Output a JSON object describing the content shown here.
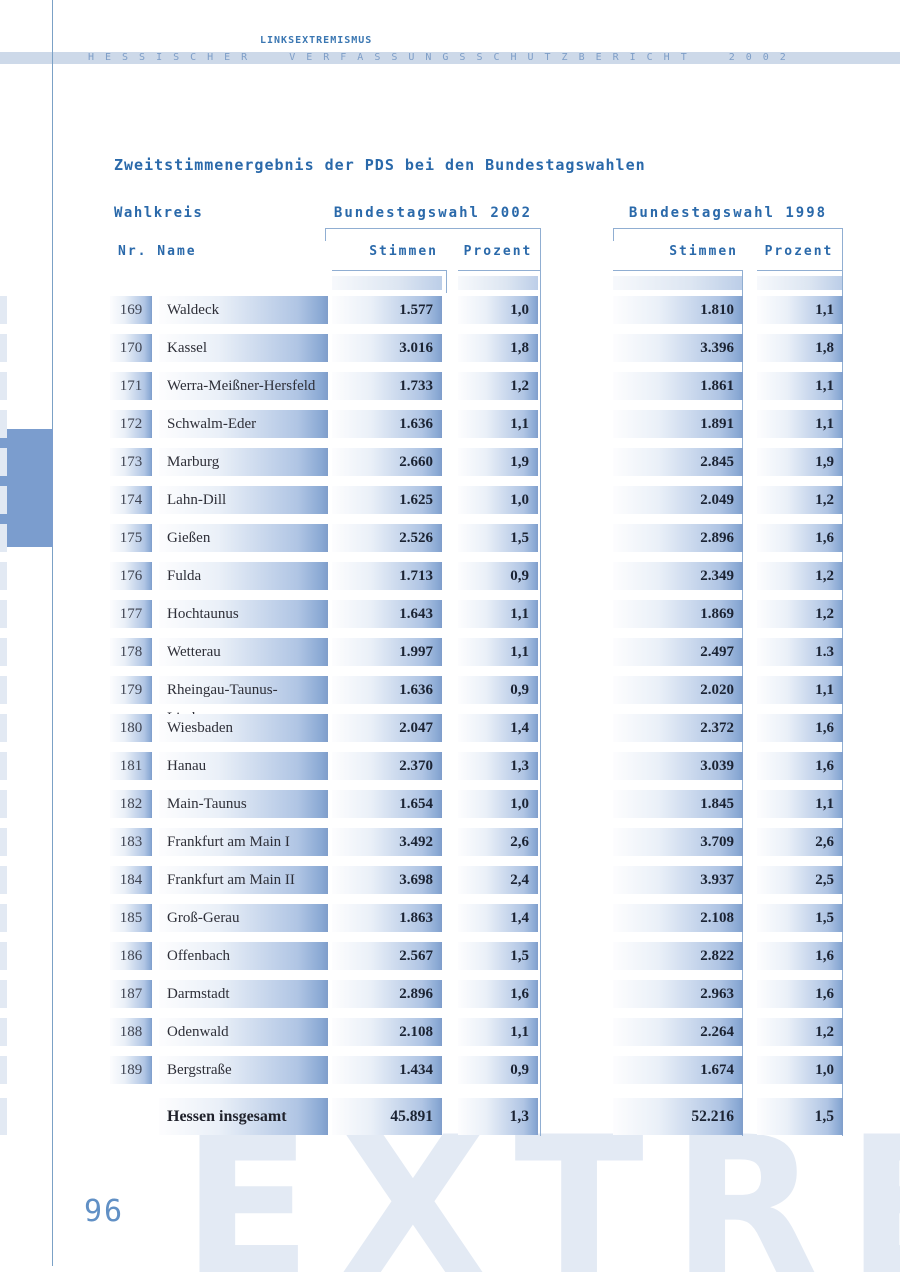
{
  "page": {
    "eyebrow": "LINKSEXTREMISMUS",
    "band_title": "HESSISCHER VERFASSUNGSSCHUTZBERICHT 2002",
    "page_number": "96",
    "watermark": "EXTRE"
  },
  "table": {
    "title": "Zweitstimmenergebnis der PDS bei den Bundestagswahlen",
    "group_headers": {
      "wahlkreis": "Wahlkreis",
      "y2002": "Bundestagswahl 2002",
      "y1998": "Bundestagswahl 1998"
    },
    "col_headers": {
      "nr_name": "Nr. Name",
      "stimmen": "Stimmen",
      "prozent": "Prozent"
    },
    "rows": [
      {
        "nr": "169",
        "name": "Waldeck",
        "s2002": "1.577",
        "p2002": "1,0",
        "s1998": "1.810",
        "p1998": "1,1"
      },
      {
        "nr": "170",
        "name": "Kassel",
        "s2002": "3.016",
        "p2002": "1,8",
        "s1998": "3.396",
        "p1998": "1,8"
      },
      {
        "nr": "171",
        "name": "Werra-Meißner-Hersfeld",
        "s2002": "1.733",
        "p2002": "1,2",
        "s1998": "1.861",
        "p1998": "1,1"
      },
      {
        "nr": "172",
        "name": "Schwalm-Eder",
        "s2002": "1.636",
        "p2002": "1,1",
        "s1998": "1.891",
        "p1998": "1,1"
      },
      {
        "nr": "173",
        "name": "Marburg",
        "s2002": "2.660",
        "p2002": "1,9",
        "s1998": "2.845",
        "p1998": "1,9"
      },
      {
        "nr": "174",
        "name": "Lahn-Dill",
        "s2002": "1.625",
        "p2002": "1,0",
        "s1998": "2.049",
        "p1998": "1,2"
      },
      {
        "nr": "175",
        "name": "Gießen",
        "s2002": "2.526",
        "p2002": "1,5",
        "s1998": "2.896",
        "p1998": "1,6"
      },
      {
        "nr": "176",
        "name": "Fulda",
        "s2002": "1.713",
        "p2002": "0,9",
        "s1998": "2.349",
        "p1998": "1,2"
      },
      {
        "nr": "177",
        "name": "Hochtaunus",
        "s2002": "1.643",
        "p2002": "1,1",
        "s1998": "1.869",
        "p1998": "1,2"
      },
      {
        "nr": "178",
        "name": "Wetterau",
        "s2002": "1.997",
        "p2002": "1,1",
        "s1998": "2.497",
        "p1998": "1.3"
      },
      {
        "nr": "179",
        "name": "Rheingau-Taunus-Limburg",
        "s2002": "1.636",
        "p2002": "0,9",
        "s1998": "2.020",
        "p1998": "1,1"
      },
      {
        "nr": "180",
        "name": "Wiesbaden",
        "s2002": "2.047",
        "p2002": "1,4",
        "s1998": "2.372",
        "p1998": "1,6"
      },
      {
        "nr": "181",
        "name": "Hanau",
        "s2002": "2.370",
        "p2002": "1,3",
        "s1998": "3.039",
        "p1998": "1,6"
      },
      {
        "nr": "182",
        "name": "Main-Taunus",
        "s2002": "1.654",
        "p2002": "1,0",
        "s1998": "1.845",
        "p1998": "1,1"
      },
      {
        "nr": "183",
        "name": "Frankfurt am Main I",
        "s2002": "3.492",
        "p2002": "2,6",
        "s1998": "3.709",
        "p1998": "2,6"
      },
      {
        "nr": "184",
        "name": "Frankfurt am Main II",
        "s2002": "3.698",
        "p2002": "2,4",
        "s1998": "3.937",
        "p1998": "2,5"
      },
      {
        "nr": "185",
        "name": "Groß-Gerau",
        "s2002": "1.863",
        "p2002": "1,4",
        "s1998": "2.108",
        "p1998": "1,5"
      },
      {
        "nr": "186",
        "name": "Offenbach",
        "s2002": "2.567",
        "p2002": "1,5",
        "s1998": "2.822",
        "p1998": "1,6"
      },
      {
        "nr": "187",
        "name": "Darmstadt",
        "s2002": "2.896",
        "p2002": "1,6",
        "s1998": "2.963",
        "p1998": "1,6"
      },
      {
        "nr": "188",
        "name": "Odenwald",
        "s2002": "2.108",
        "p2002": "1,1",
        "s1998": "2.264",
        "p1998": "1,2"
      },
      {
        "nr": "189",
        "name": "Bergstraße",
        "s2002": "1.434",
        "p2002": "0,9",
        "s1998": "1.674",
        "p1998": "1,0"
      }
    ],
    "total": {
      "label": "Hessen insgesamt",
      "s2002": "45.891",
      "p2002": "1,3",
      "s1998": "52.216",
      "p1998": "1,5"
    }
  },
  "colors": {
    "accent_blue": "#2a69aa",
    "band_background": "#cdd9e9",
    "band_text": "#7d9dc7",
    "cell_gradient_end": "#7f9dca",
    "frame_line": "#90aed2",
    "left_tab": "#7b9dce",
    "watermark": "#e3eaf4",
    "page_number": "#6190c5"
  }
}
